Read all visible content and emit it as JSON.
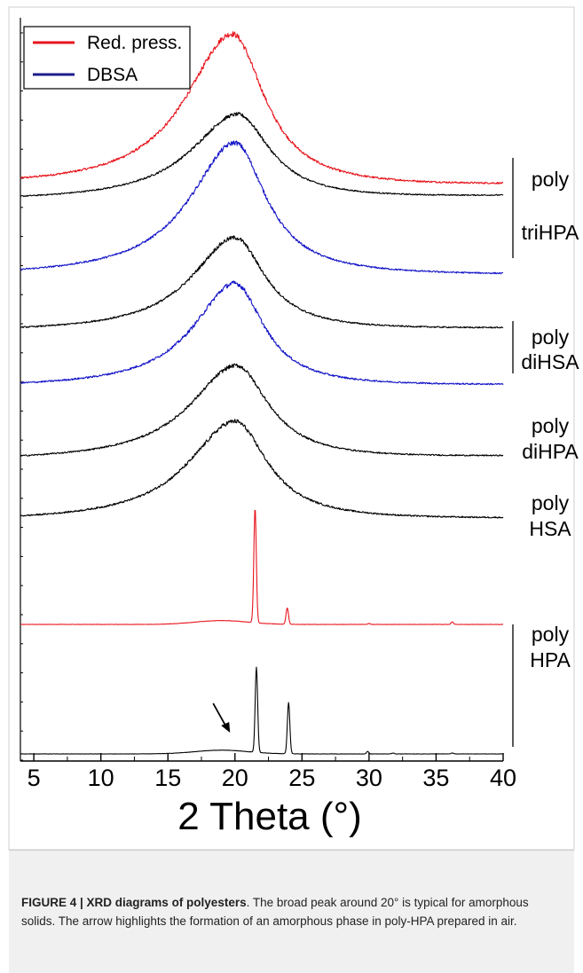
{
  "chart_data": {
    "type": "line",
    "title": "",
    "xlabel": "2 Theta (°)",
    "ylabel": "",
    "xlim": [
      4,
      40
    ],
    "xticks": [
      5,
      10,
      15,
      20,
      25,
      30,
      35,
      40
    ],
    "grid": false,
    "legend": {
      "placement": "top-left",
      "entries": [
        {
          "label": "Red. press.",
          "color": "#e8141c"
        },
        {
          "label": "DBSA",
          "color": "#1c1c8c"
        }
      ]
    },
    "group_labels": [
      {
        "lines": [
          "poly",
          "triHPA"
        ],
        "bracket": true
      },
      {
        "lines": [
          "poly",
          "diHSA"
        ],
        "bracket": true
      },
      {
        "lines": [
          "poly",
          "diHPA"
        ],
        "bracket": false
      },
      {
        "lines": [
          "poly",
          "HSA"
        ],
        "bracket": false
      },
      {
        "lines": [
          "poly",
          "HPA"
        ],
        "bracket": true
      }
    ],
    "annotations": [
      {
        "type": "arrow",
        "x": 19.5,
        "note": "amorphous phase formation in poly-HPA prepared in air"
      }
    ],
    "series": [
      {
        "group": "poly triHPA",
        "color": "#e8141c",
        "kind": "amorphous",
        "base": 0.255,
        "peak_x": 19.8,
        "height": 1.245,
        "width": 2.8,
        "tail": 0.22
      },
      {
        "group": "poly triHPA",
        "color": "#000000",
        "kind": "amorphous",
        "base": 0.03,
        "peak_x": 20.2,
        "height": 1.04,
        "width": 2.8,
        "tail": 0.2
      },
      {
        "group": "poly triHPA",
        "color": "#1414c8",
        "kind": "amorphous",
        "base": 0.005,
        "peak_x": 20.0,
        "height": 1.28,
        "width": 2.7,
        "tail": 0.05
      },
      {
        "group": "poly diHSA",
        "color": "#000000",
        "kind": "amorphous",
        "base": 0.0,
        "peak_x": 20.0,
        "height": 0.98,
        "width": 2.6,
        "tail": 0.11
      },
      {
        "group": "poly diHSA",
        "color": "#1414c8",
        "kind": "amorphous",
        "base": 0.005,
        "peak_x": 20.0,
        "height": 0.96,
        "width": 2.5,
        "tail": 0.075
      },
      {
        "group": "poly diHPA",
        "color": "#000000",
        "kind": "amorphous",
        "base": 0.01,
        "peak_x": 20.1,
        "height": 1.06,
        "width": 2.8,
        "tail": 0.16
      },
      {
        "group": "poly HSA",
        "color": "#000000",
        "kind": "amorphous",
        "base": 0.005,
        "peak_x": 20.0,
        "height": 1.0,
        "width": 2.8,
        "tail": 0.09
      },
      {
        "group": "poly HPA",
        "color": "#e8141c",
        "kind": "crystalline",
        "base": 0.0,
        "peaks": [
          {
            "x": 21.5,
            "height": 3.6
          },
          {
            "x": 23.9,
            "height": 0.51
          },
          {
            "x": 30.0,
            "height": 0.03
          },
          {
            "x": 36.2,
            "height": 0.08
          }
        ]
      },
      {
        "group": "poly HPA",
        "color": "#000000",
        "kind": "crystalline",
        "base": 0.0,
        "peaks": [
          {
            "x": 21.6,
            "height": 2.75
          },
          {
            "x": 24.0,
            "height": 1.65
          },
          {
            "x": 29.9,
            "height": 0.08
          },
          {
            "x": 31.8,
            "height": 0.03
          },
          {
            "x": 36.2,
            "height": 0.03
          }
        ]
      }
    ]
  },
  "caption": {
    "heading": "FIGURE 4 | XRD diagrams of polyesters",
    "body": ". The broad peak around 20° is typical for amorphous solids. The arrow highlights the formation of an amorphous phase in poly-HPA prepared in air."
  }
}
